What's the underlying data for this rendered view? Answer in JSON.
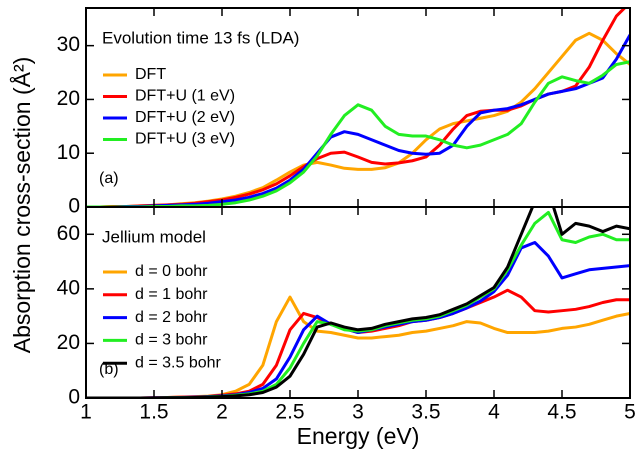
{
  "xlabel": "Energy (eV)",
  "ylabel": "Absorption cross-section (Å²)",
  "chart_data": [
    {
      "type": "line",
      "title": "Evolution time 13 fs (LDA)",
      "label": "(a)",
      "x": [
        1,
        1.1,
        1.2,
        1.3,
        1.4,
        1.5,
        1.6,
        1.7,
        1.8,
        1.9,
        2,
        2.1,
        2.2,
        2.3,
        2.4,
        2.5,
        2.6,
        2.7,
        2.8,
        2.9,
        3,
        3.1,
        3.2,
        3.3,
        3.4,
        3.5,
        3.6,
        3.7,
        3.8,
        3.9,
        4,
        4.1,
        4.2,
        4.3,
        4.4,
        4.5,
        4.6,
        4.7,
        4.8,
        4.9,
        5
      ],
      "xlim": [
        1,
        5
      ],
      "xticks": [
        1,
        1.5,
        2,
        2.5,
        3,
        3.5,
        4,
        4.5,
        5
      ],
      "ylim": [
        0,
        37
      ],
      "yticks": [
        0,
        10,
        20,
        30
      ],
      "series": [
        {
          "name": "DFT",
          "color": "#ffa500",
          "values": [
            0,
            0,
            0.1,
            0.1,
            0.2,
            0.3,
            0.4,
            0.6,
            0.8,
            1.1,
            1.5,
            2,
            2.7,
            3.6,
            5,
            6.5,
            7.8,
            8.3,
            7.8,
            7.2,
            7,
            7,
            7.3,
            8.2,
            10,
            12.5,
            14.5,
            15.5,
            16,
            16.5,
            17,
            17.8,
            19.5,
            22,
            25,
            28,
            31,
            32.3,
            31,
            28.5,
            26.5
          ]
        },
        {
          "name": "DFT+U (1 eV)",
          "color": "#ff0000",
          "values": [
            0,
            0,
            0.1,
            0.1,
            0.2,
            0.3,
            0.4,
            0.5,
            0.7,
            1,
            1.3,
            1.8,
            2.4,
            3.2,
            4.3,
            5.8,
            7.5,
            9,
            10,
            10.2,
            9.3,
            8.3,
            8,
            8.2,
            8.6,
            9.3,
            11.5,
            14.5,
            17,
            17.8,
            18,
            18,
            18.8,
            20,
            21,
            21.5,
            22.5,
            26,
            31,
            35.5,
            38
          ]
        },
        {
          "name": "DFT+U (2 eV)",
          "color": "#0000ff",
          "values": [
            0,
            0,
            0,
            0.1,
            0.1,
            0.2,
            0.3,
            0.4,
            0.5,
            0.7,
            1,
            1.3,
            1.8,
            2.5,
            3.5,
            5,
            7,
            10,
            13,
            14,
            13.5,
            12.5,
            11.5,
            10.5,
            10,
            9.8,
            10,
            11.5,
            15,
            17.5,
            18,
            18.3,
            19,
            20,
            21,
            21.5,
            22,
            23,
            24,
            27.5,
            32
          ]
        },
        {
          "name": "DFT+U (3 eV)",
          "color": "#22ee22",
          "values": [
            0,
            0,
            0,
            0,
            0,
            0.1,
            0.1,
            0.2,
            0.2,
            0.3,
            0.5,
            0.8,
            1.3,
            2,
            3,
            4.5,
            6.5,
            9.5,
            13.5,
            17,
            19,
            18,
            15,
            13.5,
            13.2,
            13.2,
            12.5,
            11.5,
            11,
            11.5,
            12.5,
            13.5,
            15.5,
            19.5,
            23,
            24.2,
            23.5,
            23,
            24.5,
            26.5,
            27
          ]
        }
      ]
    },
    {
      "type": "line",
      "title": "Jellium model",
      "label": "(b)",
      "x": [
        1,
        1.1,
        1.2,
        1.3,
        1.4,
        1.5,
        1.6,
        1.7,
        1.8,
        1.9,
        2,
        2.1,
        2.2,
        2.3,
        2.4,
        2.5,
        2.6,
        2.7,
        2.8,
        2.9,
        3,
        3.1,
        3.2,
        3.3,
        3.4,
        3.5,
        3.6,
        3.7,
        3.8,
        3.9,
        4,
        4.1,
        4.2,
        4.3,
        4.4,
        4.5,
        4.6,
        4.7,
        4.8,
        4.9,
        5
      ],
      "xlim": [
        1,
        5
      ],
      "xticks": [
        1,
        1.5,
        2,
        2.5,
        3,
        3.5,
        4,
        4.5,
        5
      ],
      "ylim": [
        0,
        70
      ],
      "yticks": [
        0,
        20,
        40,
        60
      ],
      "series": [
        {
          "name": "d = 0 bohr",
          "color": "#ffa500",
          "values": [
            0,
            0,
            0,
            0,
            0,
            0.1,
            0.2,
            0.3,
            0.5,
            0.7,
            1.2,
            2.5,
            5,
            12,
            28,
            37,
            28,
            24.5,
            24,
            23,
            22,
            22,
            22.5,
            23,
            24,
            24.5,
            25.5,
            26.5,
            28,
            27.5,
            25.5,
            24,
            24,
            24,
            24.5,
            25.5,
            26,
            27,
            28.5,
            30,
            31
          ]
        },
        {
          "name": "d = 1 bohr",
          "color": "#ff0000",
          "values": [
            0,
            0,
            0,
            0,
            0,
            0.1,
            0.2,
            0.3,
            0.4,
            0.6,
            1,
            1.5,
            2.5,
            5,
            12,
            25,
            31,
            29.5,
            27,
            25.5,
            24,
            24.5,
            25.5,
            26.5,
            28,
            28.5,
            29.5,
            31,
            33,
            35,
            37,
            39.5,
            37,
            32,
            31.5,
            32,
            32.5,
            33.5,
            35,
            36,
            36
          ]
        },
        {
          "name": "d = 2 bohr",
          "color": "#0000ff",
          "values": [
            0,
            0,
            0,
            0,
            0,
            0.1,
            0.1,
            0.2,
            0.3,
            0.5,
            0.8,
            1.2,
            2,
            3.5,
            7,
            15,
            25,
            30,
            27,
            25.5,
            24,
            25,
            26,
            27,
            28,
            28.5,
            29.5,
            31,
            33,
            35.5,
            39,
            45,
            55,
            57,
            52,
            44,
            45.5,
            47,
            47.5,
            48,
            48.5
          ]
        },
        {
          "name": "d = 3 bohr",
          "color": "#22ee22",
          "values": [
            0,
            0,
            0,
            0,
            0,
            0,
            0.1,
            0.1,
            0.2,
            0.4,
            0.6,
            1,
            1.5,
            2.5,
            5,
            11,
            20,
            28,
            27,
            25,
            24.5,
            25,
            26.5,
            27.5,
            28.5,
            29,
            30,
            32,
            34,
            37,
            40,
            47,
            56,
            64,
            68,
            58,
            57,
            59,
            60,
            58,
            58
          ]
        },
        {
          "name": "d = 3.5 bohr",
          "color": "#000000",
          "values": [
            0,
            0,
            0,
            0,
            0,
            0,
            0.1,
            0.1,
            0.2,
            0.3,
            0.5,
            0.8,
            1.2,
            2,
            4,
            8,
            16,
            26,
            27.5,
            26,
            25,
            25.5,
            27,
            28,
            29,
            29.5,
            30.5,
            32.5,
            34.5,
            37.5,
            40.5,
            48,
            60,
            72,
            76,
            60,
            64,
            63,
            61,
            63,
            62
          ]
        }
      ]
    }
  ]
}
